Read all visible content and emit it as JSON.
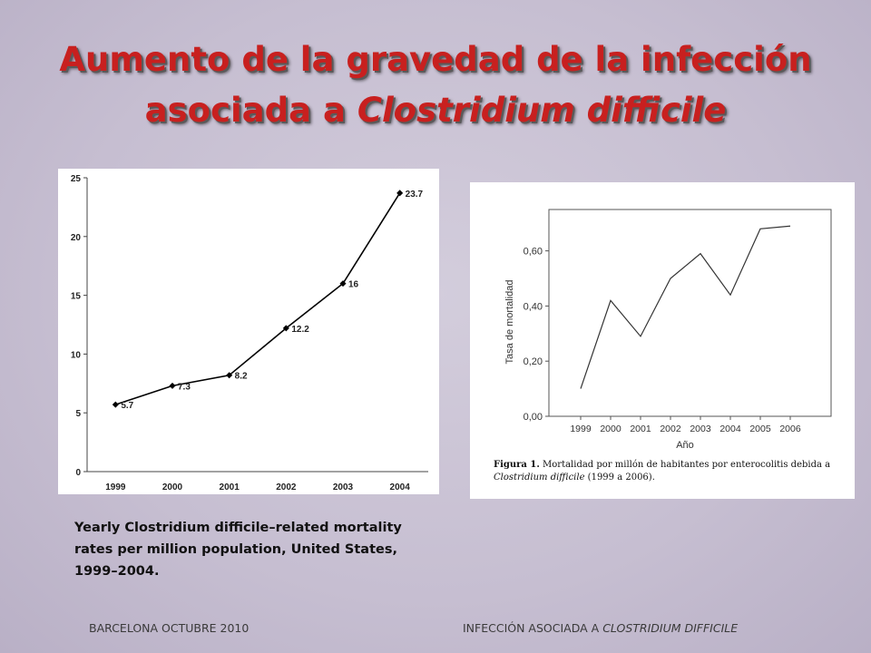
{
  "title": {
    "line1": "Aumento de la gravedad de la infección",
    "line2_prefix": "asociada a ",
    "line2_italic": "Clostridium difficile"
  },
  "caption": "Yearly Clostridium difficile–related mortality rates per million population, United States, 1999–2004.",
  "footer": {
    "left": "BARCELONA OCTUBRE 2010",
    "right_prefix": "INFECCIÓN ASOCIADA A ",
    "right_italic": "CLOSTRIDIUM DIFFICILE"
  },
  "figure_caption": {
    "label": "Figura 1.",
    "text": " Mortalidad por millón de habitantes por enterocolitis debida a ",
    "italic": "Clostridium difficile",
    "suffix": " (1999 a 2006)."
  },
  "chart_data": [
    {
      "type": "line",
      "x": [
        "1999",
        "2000",
        "2001",
        "2002",
        "2003",
        "2004"
      ],
      "values": [
        5.7,
        7.3,
        8.2,
        12.2,
        16,
        23.7
      ],
      "data_labels": [
        "5.7",
        "7.3",
        "8.2",
        "12.2",
        "16",
        "23.7"
      ],
      "ylim": [
        0,
        25
      ],
      "yticks": [
        0,
        5,
        10,
        15,
        20,
        25
      ],
      "xlabel": "",
      "ylabel": "",
      "grid": false,
      "colors": {
        "line": "#000000",
        "axis": "#444444"
      }
    },
    {
      "type": "line",
      "x": [
        "1999",
        "2000",
        "2001",
        "2002",
        "2003",
        "2004",
        "2005",
        "2006"
      ],
      "values": [
        0.1,
        0.42,
        0.29,
        0.5,
        0.59,
        0.44,
        0.68,
        0.69
      ],
      "ylim": [
        0,
        0.75
      ],
      "yticks": [
        "0,00",
        "0,20",
        "0,40",
        "0,60"
      ],
      "ytick_values": [
        0,
        0.2,
        0.4,
        0.6
      ],
      "xlabel": "Año",
      "ylabel": "Tasa de mortalidad",
      "grid": false,
      "colors": {
        "line": "#333333",
        "axis": "#555555"
      }
    }
  ]
}
